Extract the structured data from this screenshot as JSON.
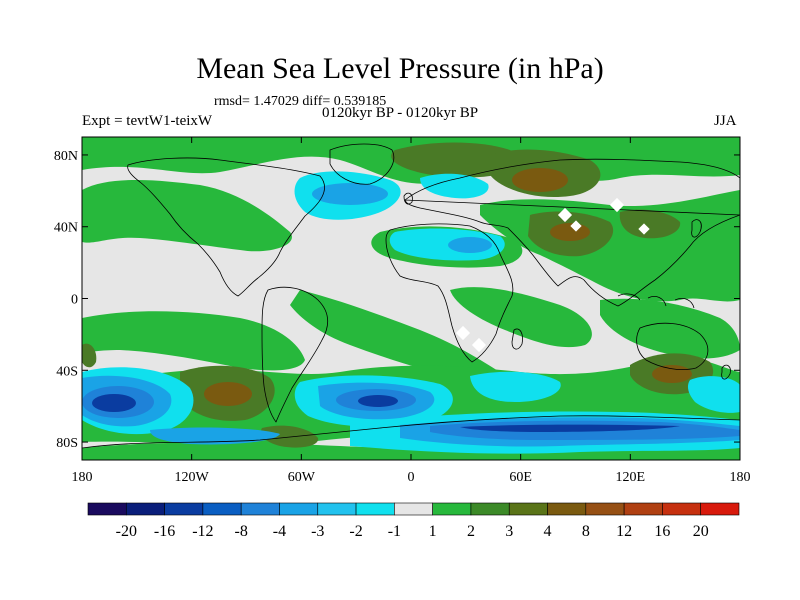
{
  "title": "Mean Sea Level Pressure (in hPa)",
  "stats": "rmsd= 1.47029 diff= 0.539185",
  "period": "0120kyr BP - 0120kyr BP",
  "experiment": "Expt = tevtW1-teixW",
  "season": "JJA",
  "axes": {
    "lat_ticks": [
      "80N",
      "40N",
      "0",
      "40S",
      "80S"
    ],
    "lon_ticks": [
      "180",
      "120W",
      "60W",
      "0",
      "60E",
      "120E",
      "180"
    ]
  },
  "colorbar": {
    "colors": [
      "#1a0a5e",
      "#0a1e7a",
      "#0a3ca0",
      "#0a5ec2",
      "#1f82d8",
      "#1aa3e6",
      "#22c2ee",
      "#10e0ee",
      "#e6e6e6",
      "#27b83c",
      "#3c8a28",
      "#5a7418",
      "#7a5a10",
      "#965014",
      "#b04012",
      "#c6300f",
      "#d81a0c"
    ],
    "labels": [
      "-20",
      "-16",
      "-12",
      "-8",
      "-4",
      "-3",
      "-2",
      "-1",
      "1",
      "2",
      "3",
      "4",
      "8",
      "12",
      "16",
      "20"
    ]
  },
  "palette": {
    "neutral": "#e6e6e6",
    "green": "#27b83c",
    "olive": "#4a7a26",
    "brown": "#7a5a10",
    "cyan": "#10e0ee",
    "lightblue": "#1aa3e6",
    "blue": "#1f82d8",
    "darkblue": "#0a3ca0",
    "navy": "#0a1e7a"
  }
}
